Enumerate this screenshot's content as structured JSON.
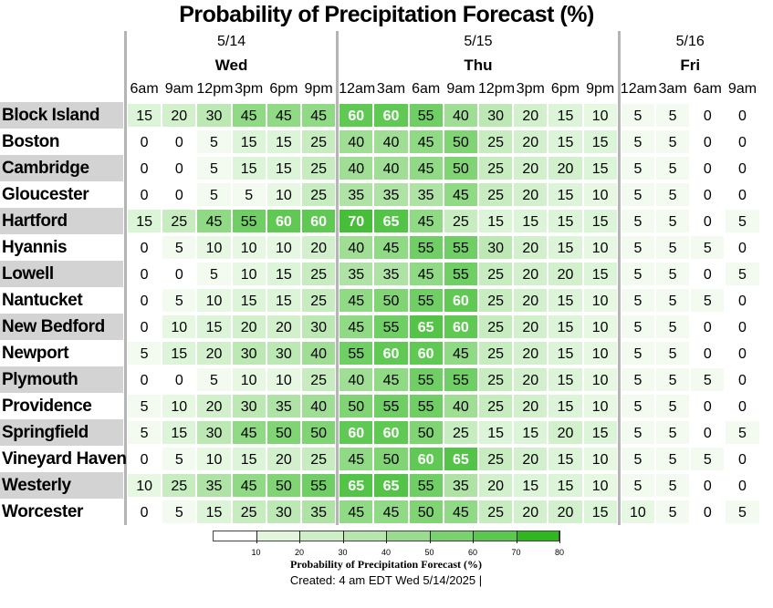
{
  "title": "Probability of Precipitation Forecast (%)",
  "chart_data": {
    "type": "heatmap",
    "title": "Probability of Precipitation Forecast (%)",
    "days": [
      {
        "date": "5/14",
        "day": "Wed",
        "times": [
          "6am",
          "9am",
          "12pm",
          "3pm",
          "6pm",
          "9pm"
        ]
      },
      {
        "date": "5/15",
        "day": "Thu",
        "times": [
          "12am",
          "3am",
          "6am",
          "9am",
          "12pm",
          "3pm",
          "6pm",
          "9pm"
        ]
      },
      {
        "date": "5/16",
        "day": "Fri",
        "times": [
          "12am",
          "3am",
          "6am",
          "9am"
        ]
      }
    ],
    "rows": [
      {
        "city": "Block Island",
        "values": [
          15,
          20,
          30,
          45,
          45,
          45,
          60,
          60,
          55,
          40,
          30,
          20,
          15,
          10,
          5,
          5,
          0,
          0
        ]
      },
      {
        "city": "Boston",
        "values": [
          0,
          0,
          5,
          15,
          15,
          25,
          40,
          40,
          45,
          50,
          25,
          20,
          15,
          15,
          5,
          5,
          0,
          0
        ]
      },
      {
        "city": "Cambridge",
        "values": [
          0,
          0,
          5,
          15,
          15,
          25,
          40,
          40,
          45,
          50,
          25,
          20,
          20,
          15,
          5,
          5,
          0,
          0
        ]
      },
      {
        "city": "Gloucester",
        "values": [
          0,
          0,
          5,
          5,
          10,
          25,
          35,
          35,
          35,
          45,
          25,
          20,
          15,
          10,
          5,
          5,
          0,
          0
        ]
      },
      {
        "city": "Hartford",
        "values": [
          15,
          25,
          45,
          55,
          60,
          60,
          70,
          65,
          45,
          25,
          15,
          15,
          15,
          15,
          5,
          5,
          0,
          5
        ]
      },
      {
        "city": "Hyannis",
        "values": [
          0,
          5,
          10,
          10,
          10,
          20,
          40,
          45,
          55,
          55,
          30,
          20,
          15,
          10,
          5,
          5,
          5,
          0
        ]
      },
      {
        "city": "Lowell",
        "values": [
          0,
          0,
          5,
          10,
          15,
          25,
          35,
          35,
          45,
          55,
          25,
          20,
          20,
          15,
          5,
          5,
          0,
          5
        ]
      },
      {
        "city": "Nantucket",
        "values": [
          0,
          5,
          10,
          15,
          15,
          25,
          45,
          50,
          55,
          60,
          25,
          20,
          15,
          10,
          5,
          5,
          5,
          0
        ]
      },
      {
        "city": "New Bedford",
        "values": [
          0,
          10,
          15,
          20,
          20,
          30,
          45,
          55,
          65,
          60,
          25,
          20,
          15,
          10,
          5,
          5,
          0,
          0
        ]
      },
      {
        "city": "Newport",
        "values": [
          5,
          15,
          20,
          30,
          30,
          40,
          55,
          60,
          60,
          45,
          25,
          20,
          15,
          10,
          5,
          5,
          0,
          0
        ]
      },
      {
        "city": "Plymouth",
        "values": [
          0,
          0,
          5,
          10,
          10,
          25,
          40,
          45,
          55,
          55,
          25,
          20,
          15,
          10,
          5,
          5,
          5,
          0
        ]
      },
      {
        "city": "Providence",
        "values": [
          5,
          10,
          20,
          30,
          35,
          40,
          50,
          55,
          55,
          40,
          25,
          20,
          15,
          10,
          5,
          5,
          0,
          0
        ]
      },
      {
        "city": "Springfield",
        "values": [
          5,
          15,
          30,
          45,
          50,
          50,
          60,
          60,
          50,
          25,
          15,
          15,
          20,
          15,
          5,
          5,
          0,
          5
        ]
      },
      {
        "city": "Vineyard Haven",
        "values": [
          0,
          5,
          10,
          15,
          20,
          25,
          45,
          50,
          60,
          65,
          25,
          20,
          15,
          10,
          5,
          5,
          5,
          0
        ]
      },
      {
        "city": "Westerly",
        "values": [
          10,
          25,
          35,
          45,
          50,
          55,
          65,
          65,
          55,
          35,
          20,
          15,
          15,
          10,
          5,
          5,
          0,
          0
        ]
      },
      {
        "city": "Worcester",
        "values": [
          0,
          5,
          15,
          25,
          30,
          35,
          45,
          45,
          50,
          45,
          25,
          20,
          20,
          15,
          10,
          5,
          0,
          5
        ]
      }
    ],
    "legend": {
      "title": "Probability of Precipitation Forecast (%)",
      "ticks": [
        "10",
        "20",
        "30",
        "40",
        "50",
        "60",
        "70",
        "80"
      ],
      "colors": [
        "#ffffff",
        "#e0f5dc",
        "#c5ecbe",
        "#a8e29e",
        "#88d87c",
        "#69cd5c",
        "#4cc33e",
        "#2fb71f"
      ]
    },
    "colors": {
      "white_text_threshold": 60,
      "row_shade": "#d3d3d3",
      "separator": "#b5b5b5"
    }
  },
  "footer": {
    "created": "Created: 4 am EDT Wed 5/14/2025  |"
  }
}
